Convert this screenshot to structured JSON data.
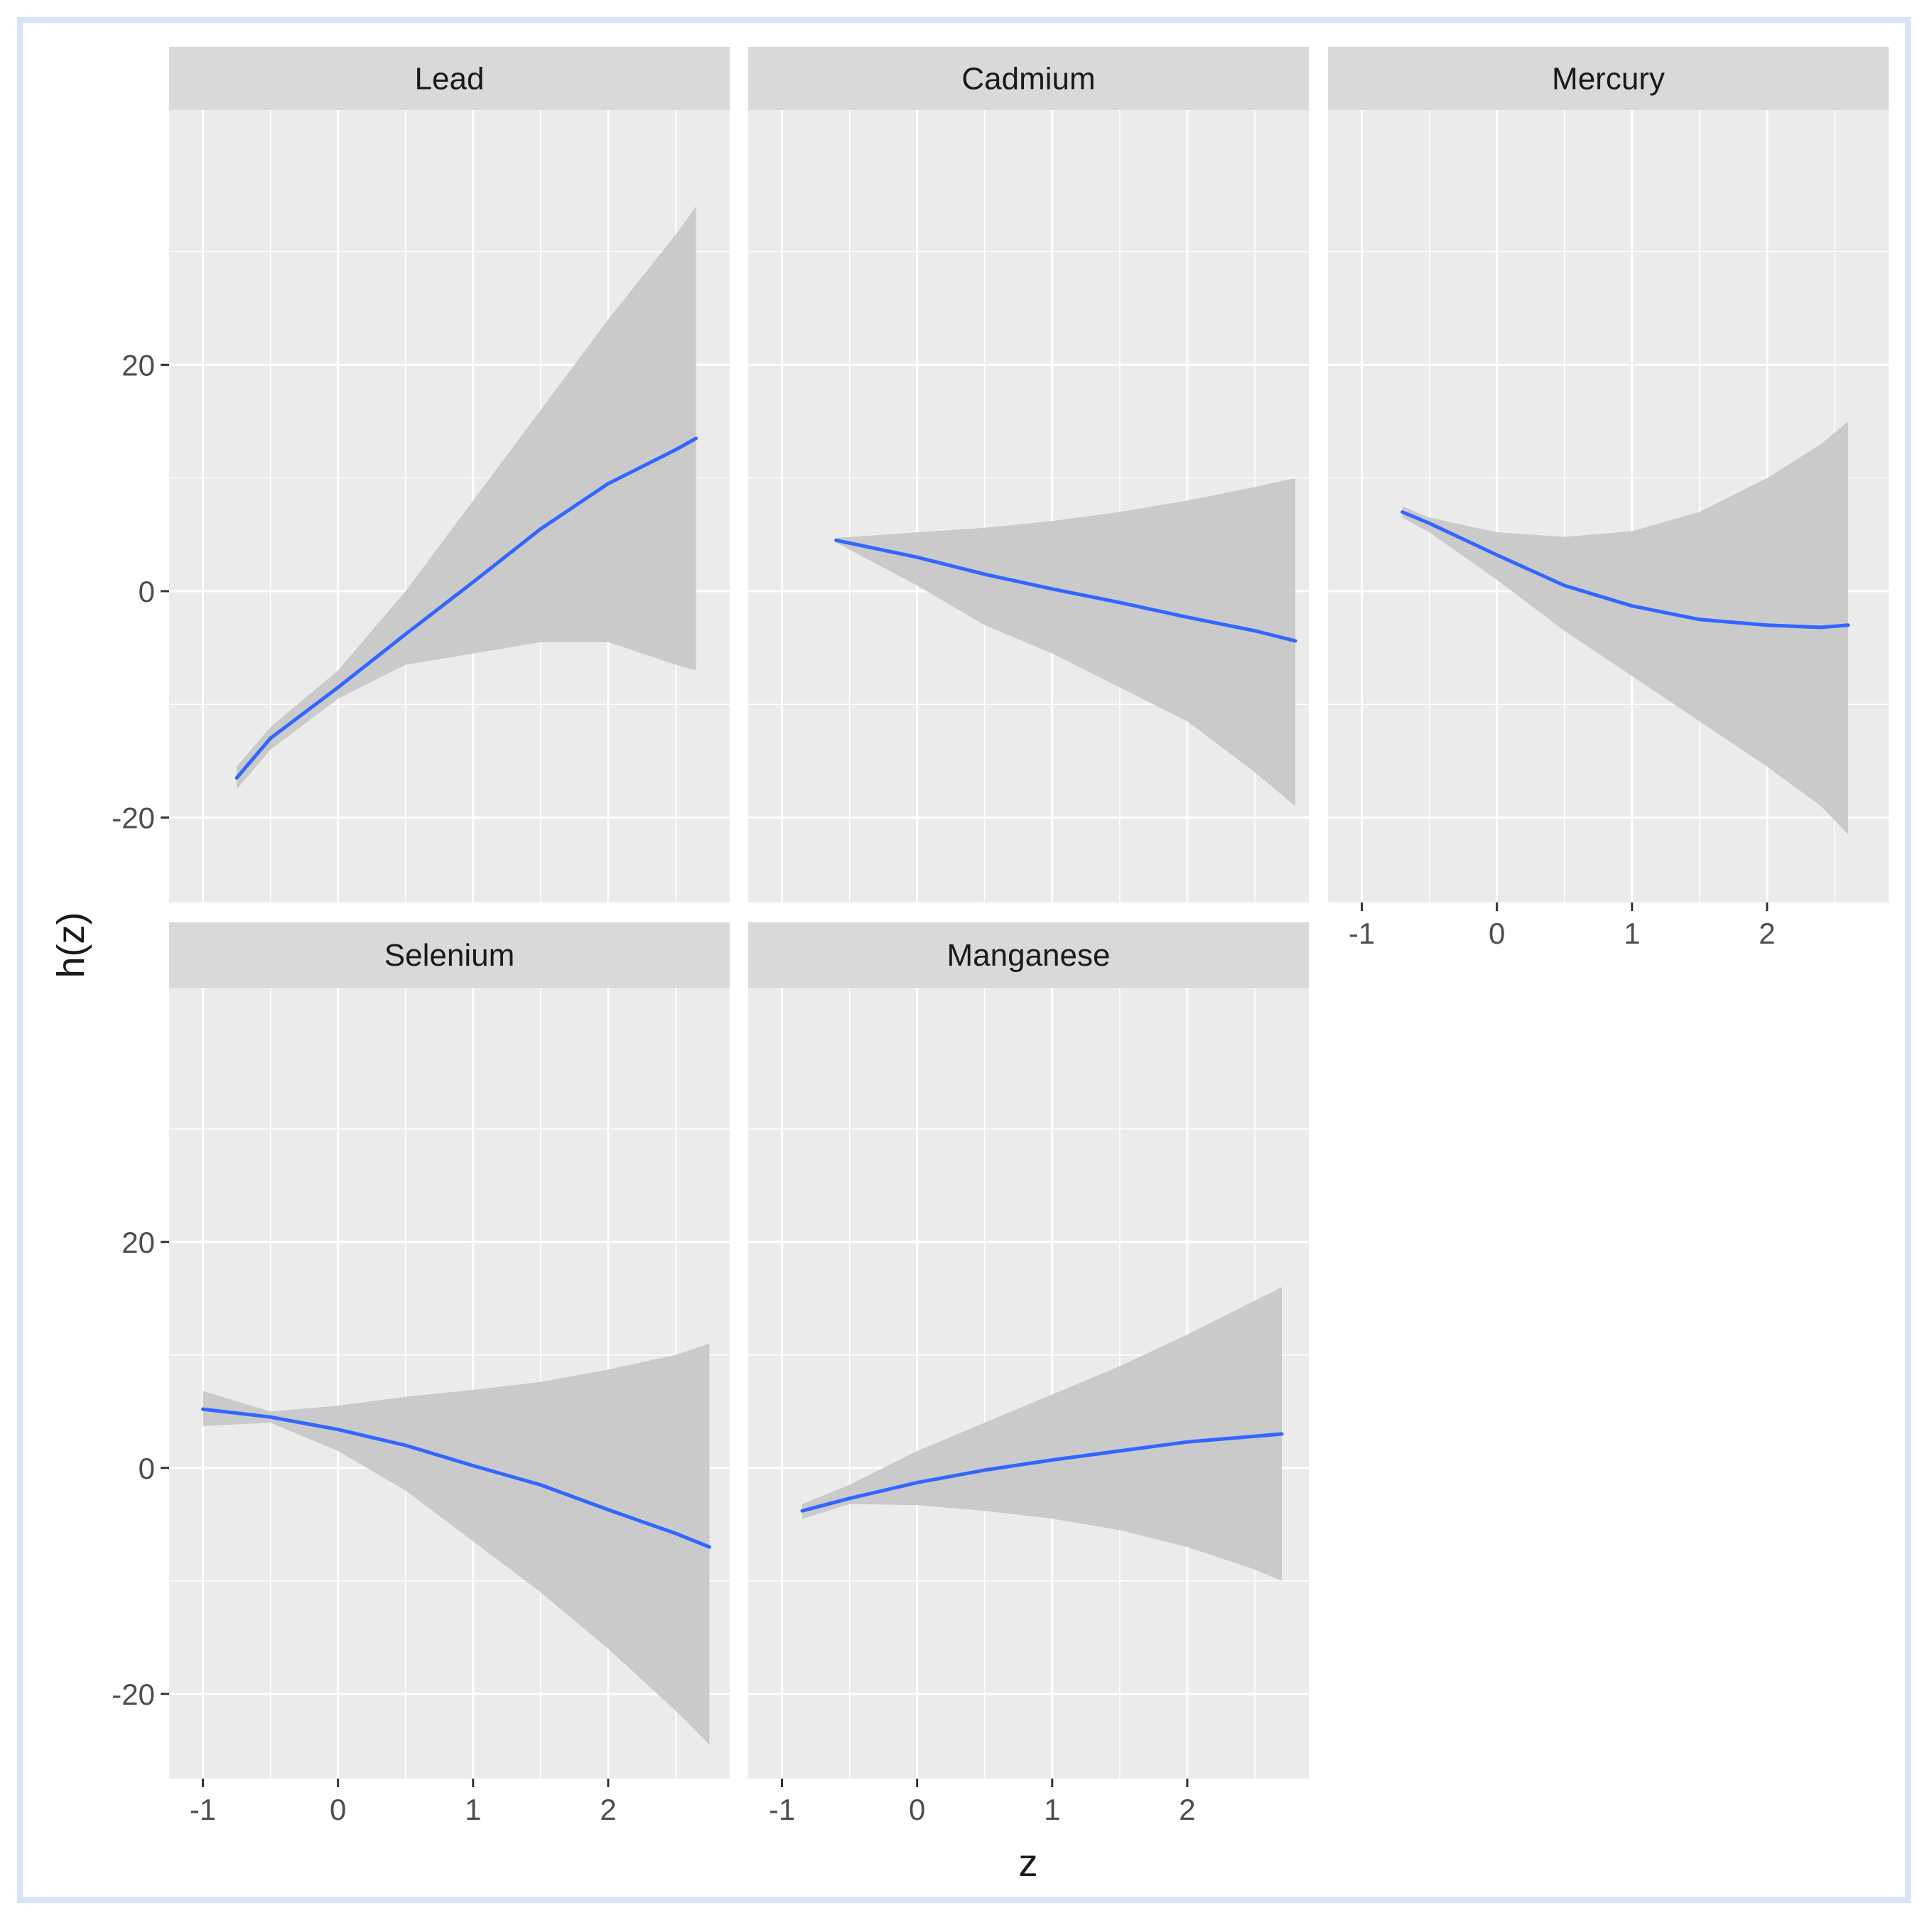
{
  "chart_data": {
    "type": "line",
    "facet": true,
    "xlabel": "z",
    "ylabel": "h(z)",
    "xlim": [
      -1.25,
      2.9
    ],
    "ylim": [
      -27.5,
      42.5
    ],
    "x_ticks": [
      -1,
      0,
      1,
      2
    ],
    "y_ticks": [
      -20,
      0,
      20
    ],
    "colors": {
      "line": "#3366ff",
      "ribbon": "#c8c8c8",
      "panel_bg": "#ebebeb",
      "strip_bg": "#d9d9d9",
      "grid": "#ffffff",
      "text": "#1a1a1a",
      "axis_text": "#4d4d4d"
    },
    "panels": [
      {
        "name": "Lead",
        "x": [
          -0.75,
          -0.5,
          0,
          0.5,
          1,
          1.5,
          2,
          2.5,
          2.65
        ],
        "y": [
          -16.5,
          -13,
          -8.5,
          -3.8,
          0.8,
          5.5,
          9.5,
          12.5,
          13.5
        ],
        "lower": [
          -17.5,
          -14,
          -9.5,
          -6.5,
          -5.5,
          -4.5,
          -4.5,
          -6.5,
          -7
        ],
        "upper": [
          -15.5,
          -12,
          -7,
          0,
          8,
          16,
          24,
          31.5,
          34
        ]
      },
      {
        "name": "Cadmium",
        "x": [
          -0.6,
          0,
          0.5,
          1,
          1.5,
          2,
          2.5,
          2.8
        ],
        "y": [
          4.5,
          3,
          1.5,
          0.2,
          -1,
          -2.3,
          -3.5,
          -4.4
        ],
        "lower": [
          4.3,
          0.5,
          -3,
          -5.5,
          -8.5,
          -11.5,
          -16,
          -19
        ],
        "upper": [
          4.7,
          5.2,
          5.6,
          6.2,
          7,
          8,
          9.2,
          10
        ]
      },
      {
        "name": "Mercury",
        "x": [
          -0.7,
          -0.5,
          0,
          0.5,
          1,
          1.5,
          2,
          2.4,
          2.6
        ],
        "y": [
          7,
          6,
          3.2,
          0.5,
          -1.3,
          -2.5,
          -3,
          -3.2,
          -3
        ],
        "lower": [
          6.5,
          5.2,
          1,
          -3.5,
          -7.5,
          -11.5,
          -15.5,
          -19,
          -21.5
        ],
        "upper": [
          7.5,
          6.5,
          5.2,
          4.8,
          5.3,
          7,
          10,
          13,
          15
        ]
      },
      {
        "name": "Selenium",
        "x": [
          -1,
          -0.5,
          0,
          0.5,
          1,
          1.5,
          2,
          2.5,
          2.75
        ],
        "y": [
          5.2,
          4.5,
          3.4,
          2,
          0.2,
          -1.5,
          -3.7,
          -5.8,
          -7
        ],
        "lower": [
          3.7,
          4,
          1.5,
          -2,
          -6.5,
          -11,
          -16,
          -21.5,
          -24.5
        ],
        "upper": [
          6.8,
          5,
          5.5,
          6.3,
          6.9,
          7.6,
          8.7,
          10,
          11
        ]
      },
      {
        "name": "Manganese",
        "x": [
          -0.85,
          -0.5,
          0,
          0.5,
          1,
          1.5,
          2,
          2.5,
          2.7
        ],
        "y": [
          -3.8,
          -2.7,
          -1.3,
          -0.2,
          0.7,
          1.5,
          2.3,
          2.8,
          3
        ],
        "lower": [
          -4.5,
          -3.2,
          -3.3,
          -3.8,
          -4.5,
          -5.5,
          -7,
          -9,
          -10
        ],
        "upper": [
          -3.2,
          -1.5,
          1.5,
          4,
          6.5,
          9,
          11.8,
          14.8,
          16
        ]
      }
    ]
  }
}
